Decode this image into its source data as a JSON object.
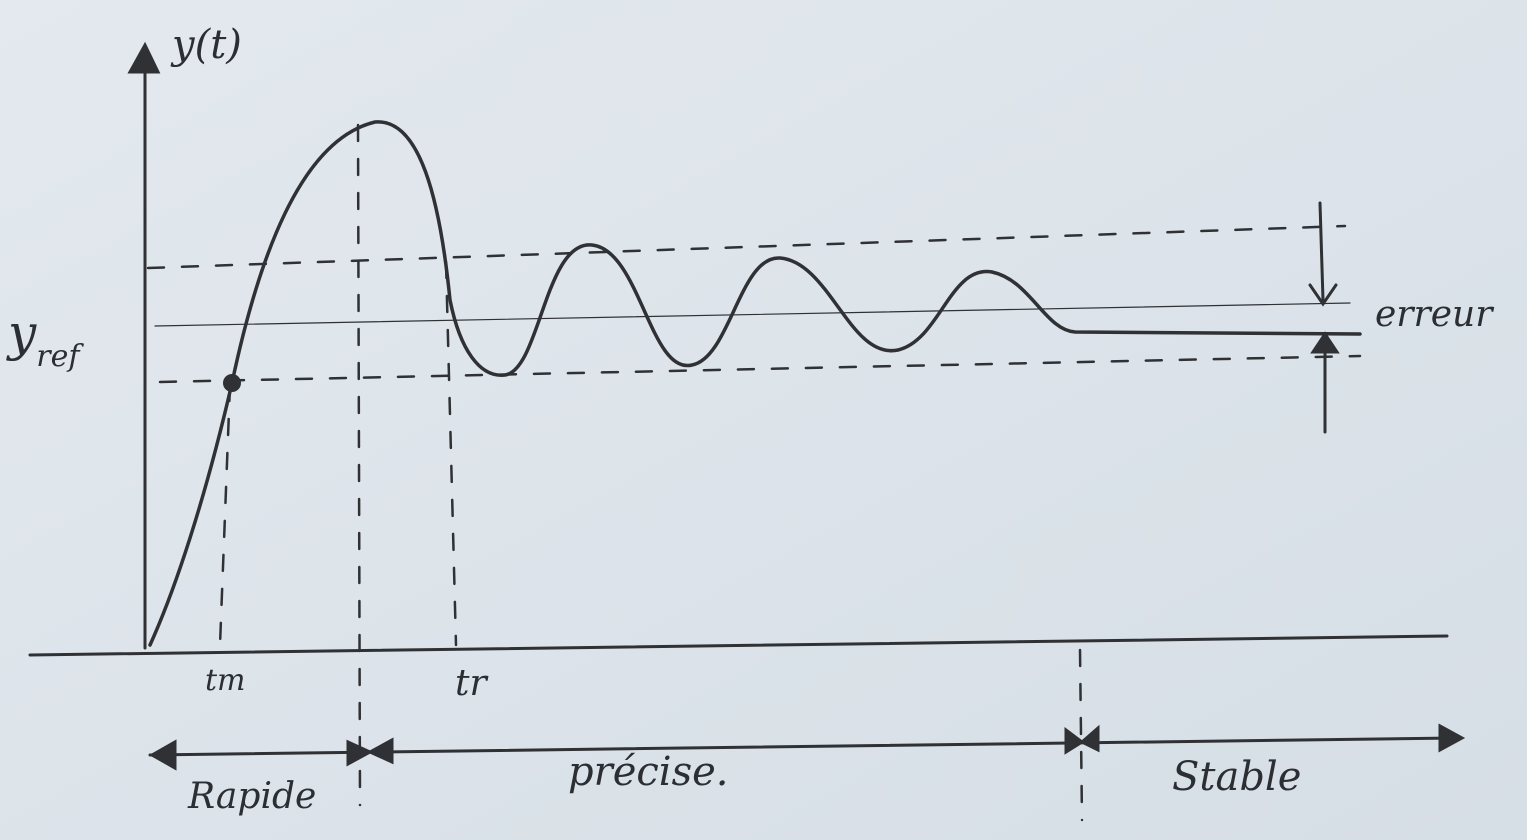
{
  "labels": {
    "y_axis": "y(t)",
    "y_ref": {
      "base": "y",
      "sub": "ref"
    },
    "error": "erreur",
    "t_m": "tm",
    "t_r": "tr"
  },
  "phases": [
    "Rapide",
    "précise.",
    "Stable"
  ]
}
